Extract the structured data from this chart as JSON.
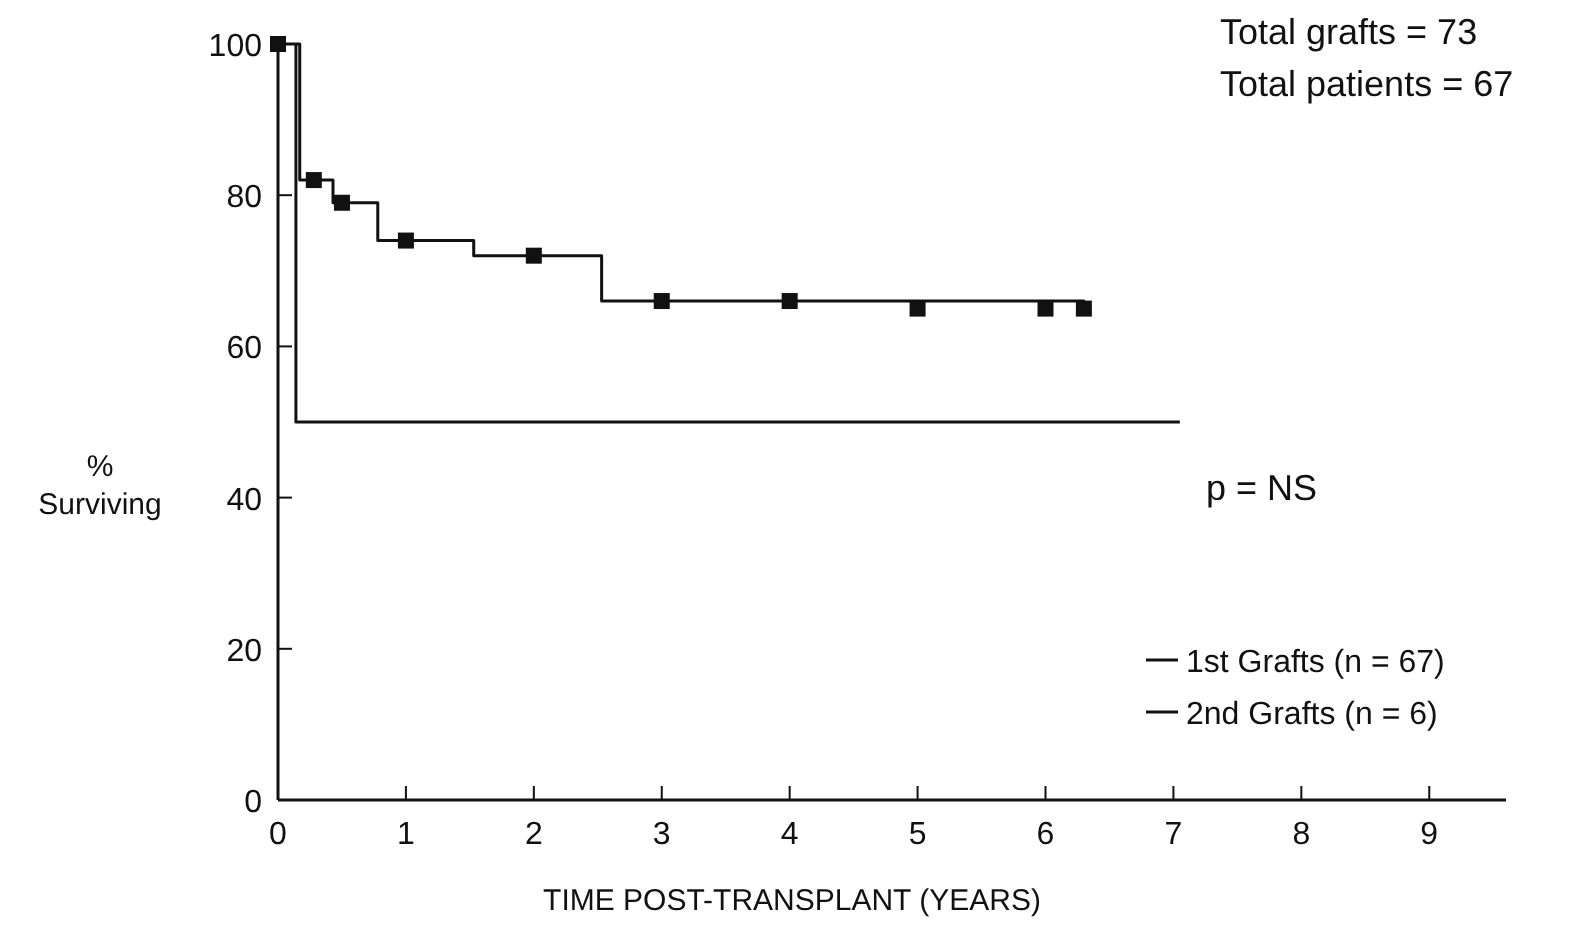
{
  "chart_data": {
    "type": "step",
    "xlabel": "TIME POST-TRANSPLANT (YEARS)",
    "ylabel": "% Surviving",
    "xlim": [
      0,
      9.6
    ],
    "ylim": [
      0,
      100
    ],
    "xticks": [
      0,
      1,
      2,
      3,
      4,
      5,
      6,
      7,
      8,
      9
    ],
    "yticks": [
      0,
      20,
      40,
      60,
      80,
      100
    ],
    "grid": false,
    "legend": "bottom right",
    "line_style": "solid",
    "annotations": [
      "Total grafts = 73",
      "Total patients = 67",
      "p = NS"
    ],
    "series": [
      {
        "name": "1st Grafts (n = 67)",
        "color": "#111111",
        "marker": "none",
        "x": [
          0,
          0.17,
          0.43,
          0.78,
          1.53,
          2.53,
          6.3
        ],
        "values": [
          100,
          82,
          79,
          74,
          72,
          66,
          65
        ]
      },
      {
        "type": "scatter",
        "color": "#111111",
        "marker": "square",
        "x": [
          0,
          0.28,
          0.5,
          1,
          2,
          3,
          4,
          5,
          6,
          6.3
        ],
        "values": [
          100,
          82,
          79,
          74,
          72,
          66,
          66,
          65,
          65,
          65
        ]
      },
      {
        "name": "2nd Grafts (n = 6)",
        "type": "line",
        "color": "#111111",
        "marker": "none",
        "x": [
          0.14,
          0.14,
          7.05
        ],
        "values": [
          100,
          50,
          50
        ]
      }
    ]
  }
}
